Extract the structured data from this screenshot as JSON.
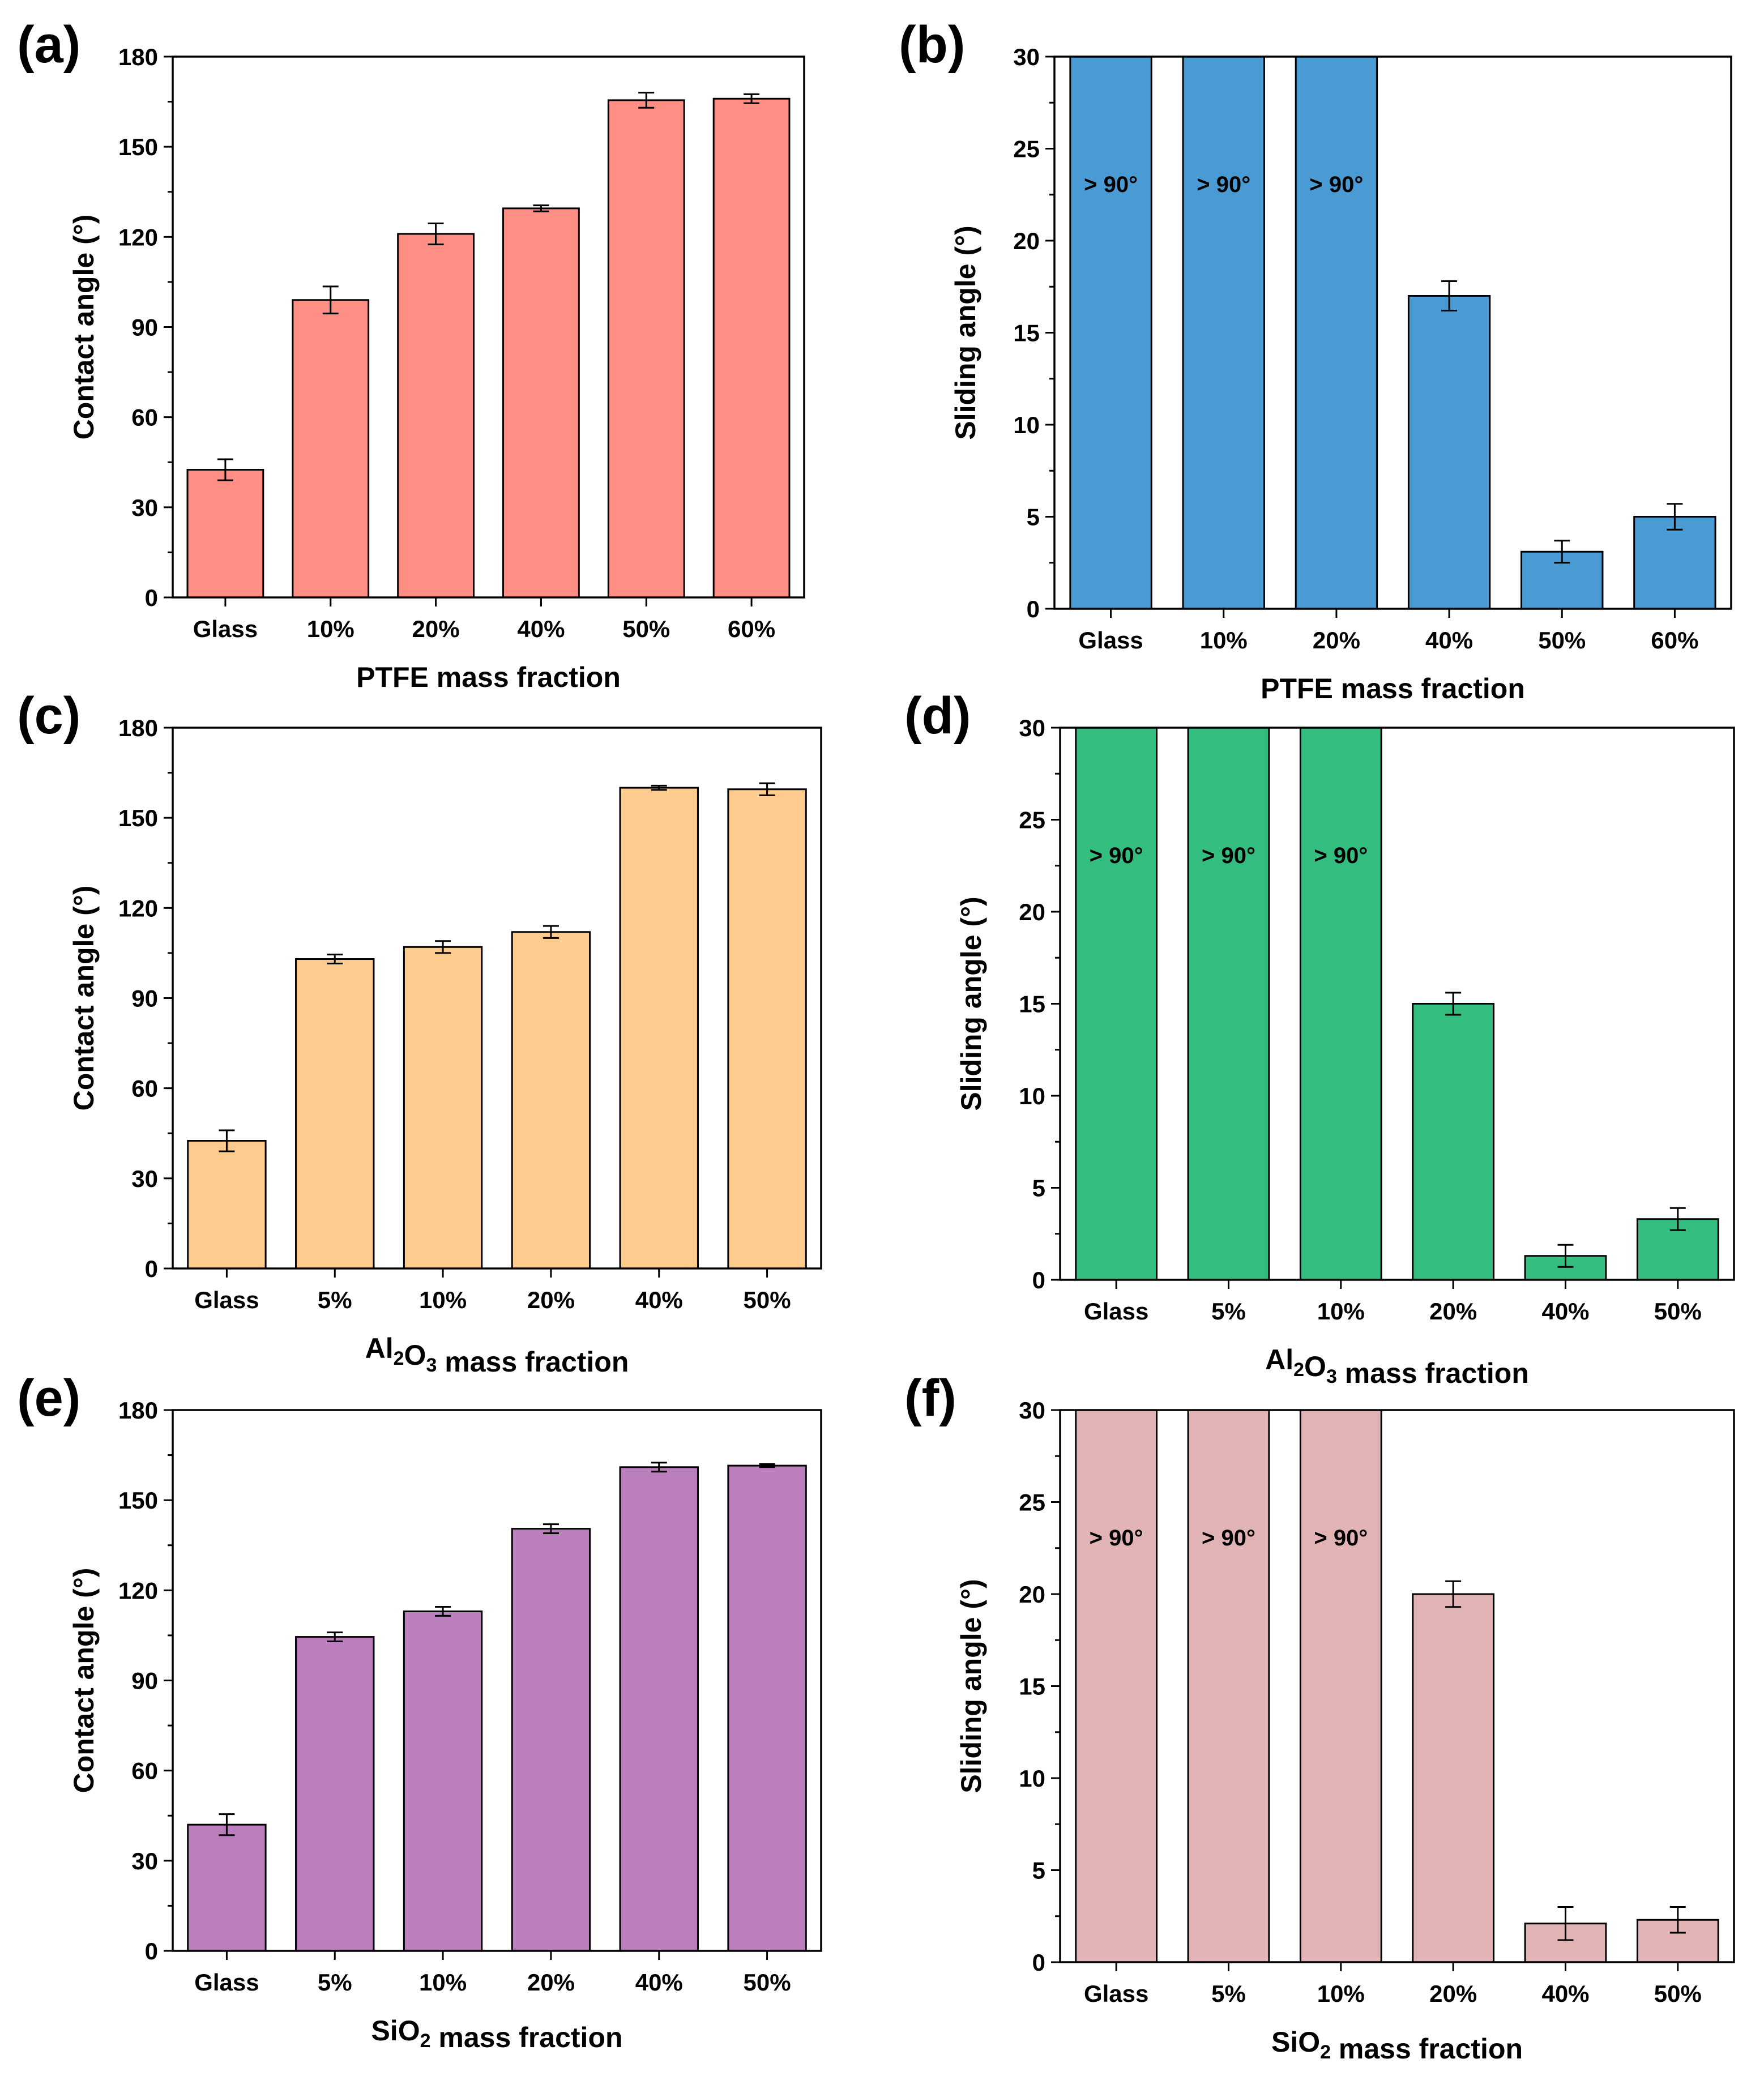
{
  "chart_data": [
    {
      "type": "bar",
      "panel_label": "(a)",
      "categories": [
        "Glass",
        "10%",
        "20%",
        "40%",
        "50%",
        "60%"
      ],
      "values": [
        42.5,
        99,
        121,
        129.5,
        165.5,
        166
      ],
      "errors": [
        3.5,
        4.5,
        3.5,
        1,
        2.5,
        1.5
      ],
      "bar_notes": [
        "",
        "",
        "",
        "",
        "",
        ""
      ],
      "ylim": [
        0,
        180
      ],
      "yticks": [
        "0",
        "30",
        "60",
        "90",
        "120",
        "150",
        "180"
      ],
      "ylabel": "Contact angle (°)",
      "xlabel": {
        "pre": "PTFE mass fraction",
        "sub": "",
        "post": ""
      },
      "color": "#FF8F85"
    },
    {
      "type": "bar",
      "panel_label": "(b)",
      "categories": [
        "Glass",
        "10%",
        "20%",
        "40%",
        "50%",
        "60%"
      ],
      "values": [
        30,
        30,
        30,
        17,
        3.1,
        5
      ],
      "errors": [
        0,
        0,
        0,
        0.8,
        0.6,
        0.7
      ],
      "bar_notes": [
        "> 90°",
        "> 90°",
        "> 90°",
        "",
        "",
        ""
      ],
      "ylim": [
        0,
        30
      ],
      "yticks": [
        "0",
        "5",
        "10",
        "15",
        "20",
        "25",
        "30"
      ],
      "ylabel": "Sliding angle (°)",
      "xlabel": {
        "pre": "PTFE mass fraction",
        "sub": "",
        "post": ""
      },
      "color": "#4A9BD3"
    },
    {
      "type": "bar",
      "panel_label": "(c)",
      "categories": [
        "Glass",
        "5%",
        "10%",
        "20%",
        "40%",
        "50%"
      ],
      "values": [
        42.5,
        103,
        107,
        112,
        160,
        159.5
      ],
      "errors": [
        3.5,
        1.5,
        2,
        2,
        0.7,
        2
      ],
      "bar_notes": [
        "",
        "",
        "",
        "",
        "",
        ""
      ],
      "ylim": [
        0,
        180
      ],
      "yticks": [
        "0",
        "30",
        "60",
        "90",
        "120",
        "150",
        "180"
      ],
      "ylabel": "Contact angle (°)",
      "xlabel": {
        "pre": "Al",
        "sub": "2",
        "mid": "O",
        "sub2": "3",
        "post": " mass fraction"
      },
      "color": "#FECB8F"
    },
    {
      "type": "bar",
      "panel_label": "(d)",
      "categories": [
        "Glass",
        "5%",
        "10%",
        "20%",
        "40%",
        "50%"
      ],
      "values": [
        30,
        30,
        30,
        15,
        1.3,
        3.3
      ],
      "errors": [
        0,
        0,
        0,
        0.6,
        0.6,
        0.6
      ],
      "bar_notes": [
        "> 90°",
        "> 90°",
        "> 90°",
        "",
        "",
        ""
      ],
      "ylim": [
        0,
        30
      ],
      "yticks": [
        "0",
        "5",
        "10",
        "15",
        "20",
        "25",
        "30"
      ],
      "ylabel": "Sliding angle (°)",
      "xlabel": {
        "pre": "Al",
        "sub": "2",
        "mid": "O",
        "sub2": "3",
        "post": " mass fraction"
      },
      "color": "#33BD7E"
    },
    {
      "type": "bar",
      "panel_label": "(e)",
      "categories": [
        "Glass",
        "5%",
        "10%",
        "20%",
        "40%",
        "50%"
      ],
      "values": [
        42,
        104.5,
        113,
        140.5,
        161,
        161.5
      ],
      "errors": [
        3.5,
        1.5,
        1.5,
        1.5,
        1.5,
        0.5
      ],
      "bar_notes": [
        "",
        "",
        "",
        "",
        "",
        ""
      ],
      "ylim": [
        0,
        180
      ],
      "yticks": [
        "0",
        "30",
        "60",
        "90",
        "120",
        "150",
        "180"
      ],
      "ylabel": "Contact angle (°)",
      "xlabel": {
        "pre": "SiO",
        "sub": "2",
        "mid": "",
        "sub2": "",
        "post": " mass fraction"
      },
      "color": "#BA7FBC"
    },
    {
      "type": "bar",
      "panel_label": "(f)",
      "categories": [
        "Glass",
        "5%",
        "10%",
        "20%",
        "40%",
        "50%"
      ],
      "values": [
        30,
        30,
        30,
        20,
        2.1,
        2.3
      ],
      "errors": [
        0,
        0,
        0,
        0.7,
        0.9,
        0.7
      ],
      "bar_notes": [
        "> 90°",
        "> 90°",
        "> 90°",
        "",
        "",
        ""
      ],
      "ylim": [
        0,
        30
      ],
      "yticks": [
        "0",
        "5",
        "10",
        "15",
        "20",
        "25",
        "30"
      ],
      "ylabel": "Sliding angle (°)",
      "xlabel": {
        "pre": "SiO",
        "sub": "2",
        "mid": "",
        "sub2": "",
        "post": " mass fraction"
      },
      "color": "#E2B3B4"
    }
  ]
}
